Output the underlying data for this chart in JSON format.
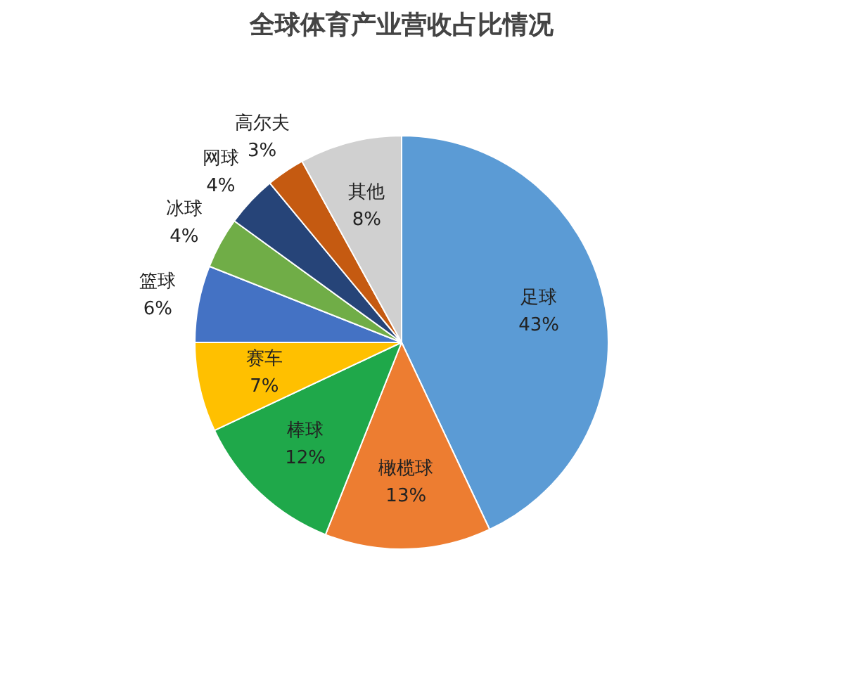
{
  "chart_data": {
    "type": "pie",
    "title": "全球体育产业营收占比情况",
    "categories": [
      "足球",
      "橄榄球",
      "棒球",
      "赛车",
      "篮球",
      "冰球",
      "网球",
      "高尔夫",
      "其他"
    ],
    "values": [
      43,
      13,
      12,
      7,
      6,
      4,
      4,
      3,
      8
    ],
    "value_labels": [
      "43%",
      "13%",
      "12%",
      "7%",
      "6%",
      "4%",
      "4%",
      "3%",
      "8%"
    ],
    "colors": [
      "#5b9bd5",
      "#ed7d31",
      "#1fa84a",
      "#ffc000",
      "#4472c4",
      "#70ad47",
      "#264478",
      "#c55a11",
      "#d0d0d0"
    ]
  }
}
